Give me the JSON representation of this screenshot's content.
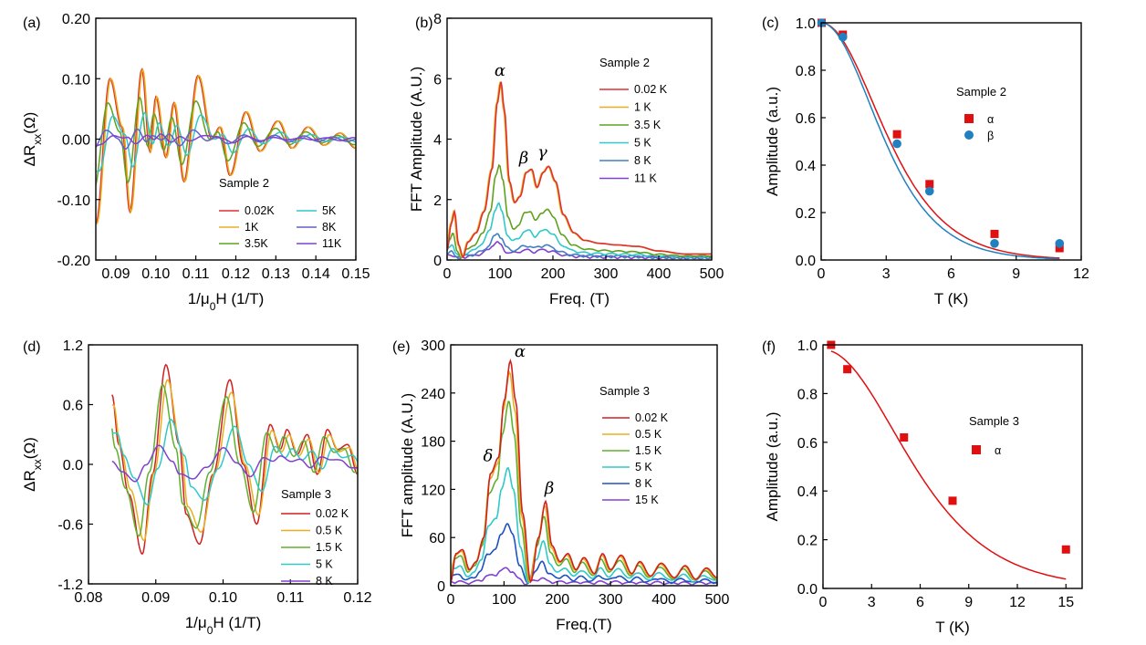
{
  "chart_data": [
    {
      "id": "a",
      "type": "line",
      "panel_label": "(a)",
      "xlabel": "1/μ₀H (1/T)",
      "ylabel": "ΔRxx(Ω)",
      "xlim": [
        0.085,
        0.15
      ],
      "ylim": [
        -0.2,
        0.2
      ],
      "xticks": [
        0.09,
        0.1,
        0.11,
        0.12,
        0.13,
        0.14,
        0.15
      ],
      "xtick_labels": [
        "0.09",
        "0.10",
        "0.11",
        "0.12",
        "0.13",
        "0.14",
        "0.15"
      ],
      "yticks": [
        -0.2,
        -0.1,
        0.0,
        0.1,
        0.2
      ],
      "ytick_labels": [
        "-0.20",
        "-0.10",
        "0.00",
        "0.10",
        "0.20"
      ],
      "legend_title": "Sample 2",
      "legend_entries": [
        "0.02K",
        "1K",
        "3.5K",
        "5K",
        "8K",
        "11K"
      ],
      "colors": [
        "#e03030",
        "#e8b020",
        "#60a020",
        "#30c8c8",
        "#6060c8",
        "#8040d0"
      ],
      "amplitudes": [
        1.0,
        1.0,
        0.6,
        0.38,
        0.12,
        0.08
      ],
      "extrema": [
        [
          0.085,
          -0.14
        ],
        [
          0.0885,
          0.1
        ],
        [
          0.0915,
          0.02
        ],
        [
          0.0935,
          -0.12
        ],
        [
          0.0965,
          0.115
        ],
        [
          0.0985,
          -0.02
        ],
        [
          0.1,
          0.07
        ],
        [
          0.1025,
          -0.03
        ],
        [
          0.1045,
          0.06
        ],
        [
          0.107,
          -0.07
        ],
        [
          0.1105,
          0.105
        ],
        [
          0.114,
          0.0
        ],
        [
          0.116,
          0.02
        ],
        [
          0.1185,
          -0.06
        ],
        [
          0.1225,
          0.045
        ],
        [
          0.126,
          -0.02
        ],
        [
          0.1305,
          0.03
        ],
        [
          0.134,
          -0.015
        ],
        [
          0.138,
          0.02
        ],
        [
          0.142,
          -0.01
        ],
        [
          0.146,
          0.01
        ],
        [
          0.15,
          -0.015
        ]
      ]
    },
    {
      "id": "b",
      "type": "line",
      "panel_label": "(b)",
      "xlabel": "Freq. (T)",
      "ylabel": "FFT Amplitude (A.U.)",
      "xlim": [
        0,
        500
      ],
      "ylim": [
        0,
        8
      ],
      "xticks": [
        0,
        100,
        200,
        300,
        400,
        500
      ],
      "xtick_labels": [
        "0",
        "100",
        "200",
        "300",
        "400",
        "500"
      ],
      "yticks": [
        0,
        2,
        4,
        6,
        8
      ],
      "ytick_labels": [
        "0",
        "2",
        "4",
        "6",
        "8"
      ],
      "legend_title": "Sample 2",
      "legend_entries": [
        "0.02 K",
        "1 K",
        "3.5 K",
        "5 K",
        "8 K",
        "11 K"
      ],
      "colors": [
        "#e03030",
        "#e8b020",
        "#60a020",
        "#30c8c8",
        "#4080c0",
        "#8040d0"
      ],
      "amplitudes": [
        1.0,
        1.0,
        0.53,
        0.31,
        0.14,
        0.09
      ],
      "peak_labels": [
        {
          "text": "α",
          "x": 100,
          "y": 6.1
        },
        {
          "text": "β",
          "x": 145,
          "y": 3.2
        },
        {
          "text": "γ",
          "x": 180,
          "y": 3.4
        }
      ],
      "profile": [
        [
          0,
          0.3
        ],
        [
          8,
          1.2
        ],
        [
          14,
          1.6
        ],
        [
          22,
          0.5
        ],
        [
          30,
          0.1
        ],
        [
          40,
          0.6
        ],
        [
          55,
          0.9
        ],
        [
          70,
          1.6
        ],
        [
          85,
          3.0
        ],
        [
          95,
          5.2
        ],
        [
          102,
          5.9
        ],
        [
          108,
          5.0
        ],
        [
          118,
          2.6
        ],
        [
          128,
          1.9
        ],
        [
          138,
          2.1
        ],
        [
          150,
          2.9
        ],
        [
          160,
          3.0
        ],
        [
          170,
          2.4
        ],
        [
          182,
          2.9
        ],
        [
          192,
          3.1
        ],
        [
          205,
          2.6
        ],
        [
          220,
          1.5
        ],
        [
          240,
          0.9
        ],
        [
          260,
          0.65
        ],
        [
          290,
          0.55
        ],
        [
          320,
          0.5
        ],
        [
          360,
          0.45
        ],
        [
          400,
          0.3
        ],
        [
          450,
          0.2
        ],
        [
          500,
          0.2
        ]
      ]
    },
    {
      "id": "c",
      "type": "scatter",
      "panel_label": "(c)",
      "xlabel": "T (K)",
      "ylabel": "Amplitude (a.u.)",
      "xlim": [
        0,
        12
      ],
      "ylim": [
        0,
        1.0
      ],
      "xticks": [
        0,
        3,
        6,
        9,
        12
      ],
      "xtick_labels": [
        "0",
        "3",
        "6",
        "9",
        "12"
      ],
      "yticks": [
        0,
        0.2,
        0.4,
        0.6,
        0.8,
        1.0
      ],
      "ytick_labels": [
        "0.0",
        "0.2",
        "0.4",
        "0.6",
        "0.8",
        "1.0"
      ],
      "legend_title": "Sample 2",
      "series": [
        {
          "name": "α",
          "marker": "square",
          "color": "#e01010",
          "x": [
            0.02,
            1,
            3.5,
            5,
            8,
            11
          ],
          "y": [
            1.0,
            0.95,
            0.53,
            0.32,
            0.11,
            0.05
          ],
          "fit_lambda": 0.214
        },
        {
          "name": "β",
          "marker": "circle",
          "color": "#2080c0",
          "x": [
            0.02,
            1,
            3.5,
            5,
            8,
            11
          ],
          "y": [
            1.0,
            0.94,
            0.49,
            0.29,
            0.07,
            0.07
          ],
          "fit_lambda": 0.23
        }
      ]
    },
    {
      "id": "d",
      "type": "line",
      "panel_label": "(d)",
      "xlabel": "1/μ₀H (1/T)",
      "ylabel": "ΔRxx(Ω)",
      "xlim": [
        0.08,
        0.12
      ],
      "ylim": [
        -1.2,
        1.2
      ],
      "xticks": [
        0.08,
        0.09,
        0.1,
        0.11,
        0.12
      ],
      "xtick_labels": [
        "0.08",
        "0.09",
        "0.10",
        "0.11",
        "0.12"
      ],
      "yticks": [
        -1.2,
        -0.6,
        0.0,
        0.6,
        1.2
      ],
      "ytick_labels": [
        "-1.2",
        "-0.6",
        "0.0",
        "0.6",
        "1.2"
      ],
      "legend_title": "Sample 3",
      "legend_entries": [
        "0.02 K",
        "0.5 K",
        "1.5 K",
        "5 K",
        "8 K"
      ],
      "colors": [
        "#d02020",
        "#e8b020",
        "#60b030",
        "#30c8c8",
        "#8040d0"
      ],
      "amplitudes": [
        1.0,
        0.85,
        0.8,
        0.45,
        0.2
      ],
      "extrema": [
        [
          0.0835,
          0.7
        ],
        [
          0.0845,
          0.2
        ],
        [
          0.086,
          -0.3
        ],
        [
          0.088,
          -0.9
        ],
        [
          0.0895,
          -0.1
        ],
        [
          0.0915,
          1.0
        ],
        [
          0.0935,
          0.2
        ],
        [
          0.0945,
          -0.5
        ],
        [
          0.0965,
          -0.8
        ],
        [
          0.0985,
          -0.1
        ],
        [
          0.101,
          0.85
        ],
        [
          0.103,
          0.0
        ],
        [
          0.105,
          -0.6
        ],
        [
          0.107,
          0.4
        ],
        [
          0.1085,
          0.15
        ],
        [
          0.1095,
          0.35
        ],
        [
          0.111,
          0.1
        ],
        [
          0.1125,
          0.3
        ],
        [
          0.114,
          -0.1
        ],
        [
          0.1155,
          0.35
        ],
        [
          0.117,
          0.15
        ],
        [
          0.1185,
          0.2
        ],
        [
          0.12,
          -0.1
        ]
      ]
    },
    {
      "id": "e",
      "type": "line",
      "panel_label": "(e)",
      "xlabel": "Freq.(T)",
      "ylabel": "FFT amplitude (A.U.)",
      "xlim": [
        0,
        500
      ],
      "ylim": [
        0,
        300
      ],
      "xticks": [
        0,
        100,
        200,
        300,
        400,
        500
      ],
      "xtick_labels": [
        "0",
        "100",
        "200",
        "300",
        "400",
        "500"
      ],
      "yticks": [
        0,
        60,
        120,
        180,
        240,
        300
      ],
      "ytick_labels": [
        "0",
        "60",
        "120",
        "180",
        "240",
        "300"
      ],
      "legend_title": "Sample 3",
      "legend_entries": [
        "0.02 K",
        "0.5 K",
        "1.5 K",
        "5 K",
        "8 K",
        "15 K"
      ],
      "colors": [
        "#d02020",
        "#e8b020",
        "#60b030",
        "#30c8c8",
        "#2050c0",
        "#8040d0"
      ],
      "amplitudes": [
        1.0,
        0.95,
        0.82,
        0.52,
        0.27,
        0.07
      ],
      "peak_labels": [
        {
          "text": "α",
          "x": 130,
          "y": 285
        },
        {
          "text": "δ",
          "x": 70,
          "y": 155
        },
        {
          "text": "β",
          "x": 185,
          "y": 115
        }
      ],
      "profile": [
        [
          0,
          5
        ],
        [
          10,
          40
        ],
        [
          22,
          45
        ],
        [
          35,
          20
        ],
        [
          48,
          30
        ],
        [
          62,
          60
        ],
        [
          75,
          140
        ],
        [
          90,
          160
        ],
        [
          100,
          230
        ],
        [
          112,
          280
        ],
        [
          122,
          230
        ],
        [
          135,
          90
        ],
        [
          150,
          5
        ],
        [
          165,
          60
        ],
        [
          178,
          105
        ],
        [
          190,
          50
        ],
        [
          205,
          30
        ],
        [
          220,
          40
        ],
        [
          235,
          20
        ],
        [
          250,
          35
        ],
        [
          270,
          15
        ],
        [
          285,
          40
        ],
        [
          300,
          20
        ],
        [
          320,
          38
        ],
        [
          340,
          15
        ],
        [
          355,
          30
        ],
        [
          375,
          12
        ],
        [
          395,
          28
        ],
        [
          420,
          10
        ],
        [
          440,
          25
        ],
        [
          460,
          8
        ],
        [
          480,
          22
        ],
        [
          500,
          10
        ]
      ]
    },
    {
      "id": "f",
      "type": "scatter",
      "panel_label": "(f)",
      "xlabel": "T (K)",
      "ylabel": "Amplitude (a.u.)",
      "xlim": [
        0,
        16
      ],
      "ylim": [
        0,
        1.0
      ],
      "xticks": [
        0,
        3,
        6,
        9,
        12,
        15
      ],
      "xtick_labels": [
        "0",
        "3",
        "6",
        "9",
        "12",
        "15"
      ],
      "yticks": [
        0,
        0.2,
        0.4,
        0.6,
        0.8,
        1.0
      ],
      "ytick_labels": [
        "0.0",
        "0.2",
        "0.4",
        "0.6",
        "0.8",
        "1.0"
      ],
      "legend_title": "Sample 3",
      "series": [
        {
          "name": "α",
          "marker": "square",
          "color": "#e01010",
          "x": [
            0.5,
            1.5,
            5,
            8,
            15
          ],
          "y": [
            1.0,
            0.9,
            0.62,
            0.36,
            0.16
          ],
          "fit_lambda": 0.118,
          "fit_scale": 0.98
        }
      ]
    }
  ]
}
